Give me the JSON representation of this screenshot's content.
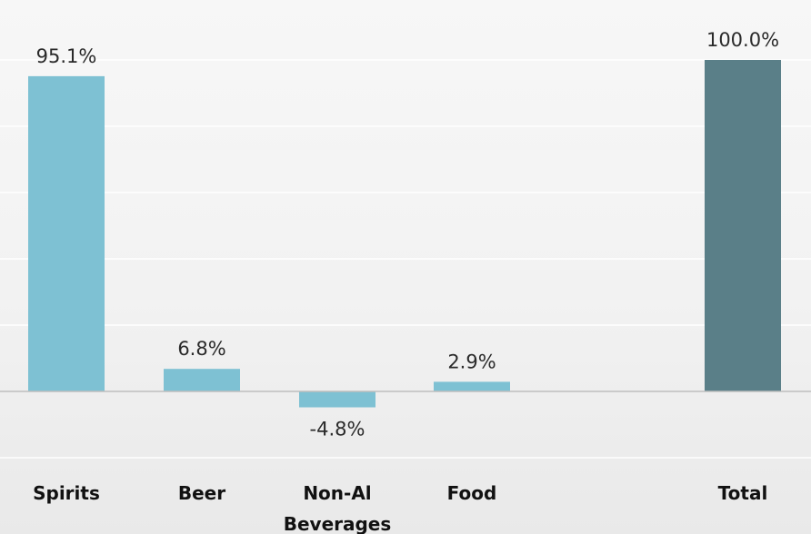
{
  "chart_data": {
    "type": "bar",
    "subtype": "waterfall",
    "categories": [
      "Spirits",
      "Beer",
      "Non-Al Beverages",
      "Food",
      "",
      "Total"
    ],
    "category_lines": [
      [
        "Spirits"
      ],
      [
        "Beer"
      ],
      [
        "Non-Al",
        "Beverages"
      ],
      [
        "Food"
      ],
      [],
      [
        "Total"
      ]
    ],
    "values": [
      95.1,
      6.8,
      -4.8,
      2.9,
      null,
      100.0
    ],
    "data_labels": [
      "95.1%",
      "6.8%",
      "-4.8%",
      "2.9%",
      "",
      "100.0%"
    ],
    "unit": "%",
    "title": "",
    "xlabel": "",
    "ylabel": "",
    "ylim": [
      -20,
      100
    ],
    "grid_step": 20,
    "grid": true,
    "legend": "none",
    "colors": {
      "bar": "#7ec1d3",
      "total": "#5a7f88",
      "gridline": "#ffffff",
      "baseline": "#bdbdbd",
      "background": "#efefef"
    }
  }
}
